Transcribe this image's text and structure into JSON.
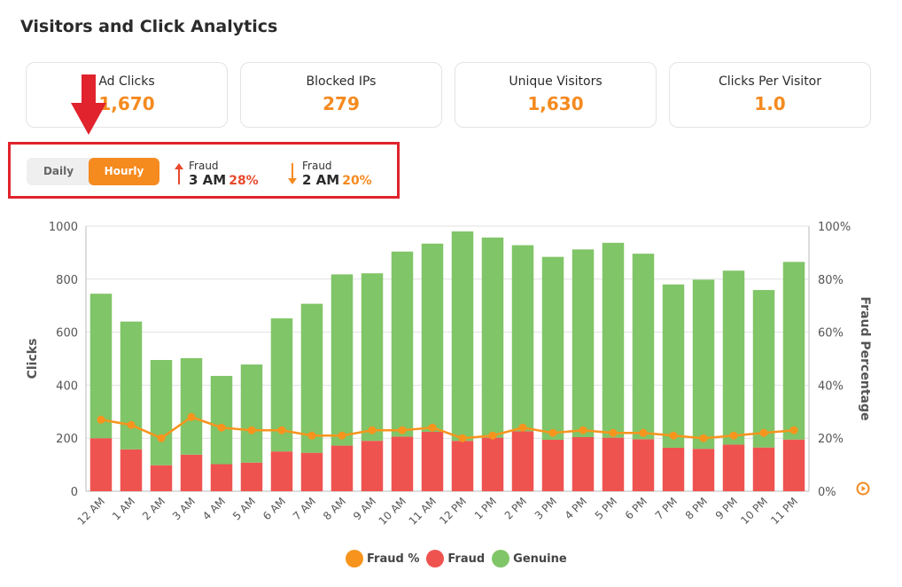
{
  "title": "Visitors and Click Analytics",
  "cards": [
    {
      "label": "Ad Clicks",
      "value": "1,670"
    },
    {
      "label": "Blocked IPs",
      "value": "279"
    },
    {
      "label": "Unique Visitors",
      "value": "1,630"
    },
    {
      "label": "Clicks Per Visitor",
      "value": "1.0"
    }
  ],
  "toggle": {
    "daily": "Daily",
    "hourly": "Hourly",
    "selected": "Hourly"
  },
  "fraud_high": {
    "label": "Fraud",
    "time": "3 AM",
    "pct": "28%"
  },
  "fraud_low": {
    "label": "Fraud",
    "time": "2 AM",
    "pct": "20%"
  },
  "colors": {
    "accent": "#f58a1f",
    "fraud": "#ef5350",
    "genuine": "#80c567",
    "line": "#f7941d",
    "highlight": "#e0232c"
  },
  "icons": {
    "down_arrow": "red-down-arrow-icon",
    "up": "arrow-up-icon",
    "down": "arrow-down-icon",
    "play": "play-circle-icon"
  },
  "chart_data": {
    "type": "bar",
    "stacked": true,
    "categories": [
      "12 AM",
      "1 AM",
      "2 AM",
      "3 AM",
      "4 AM",
      "5 AM",
      "6 AM",
      "7 AM",
      "8 AM",
      "9 AM",
      "10 AM",
      "11 AM",
      "12 PM",
      "1 PM",
      "2 PM",
      "3 PM",
      "4 PM",
      "5 PM",
      "6 PM",
      "7 PM",
      "8 PM",
      "9 PM",
      "10 PM",
      "11 PM"
    ],
    "series": [
      {
        "name": "Fraud",
        "type": "bar",
        "values": [
          200,
          158,
          98,
          138,
          102,
          108,
          150,
          145,
          172,
          190,
          206,
          224,
          190,
          202,
          226,
          194,
          204,
          202,
          196,
          164,
          160,
          176,
          165,
          195
        ]
      },
      {
        "name": "Genuine",
        "type": "bar",
        "values": [
          545,
          482,
          397,
          364,
          333,
          370,
          502,
          562,
          646,
          632,
          698,
          710,
          790,
          755,
          702,
          690,
          708,
          735,
          700,
          616,
          638,
          656,
          594,
          670
        ]
      },
      {
        "name": "Fraud %",
        "type": "line",
        "axis": "right",
        "values": [
          27,
          25,
          20,
          28,
          24,
          23,
          23,
          21,
          21,
          23,
          23,
          24,
          20,
          21,
          24,
          22,
          23,
          22,
          22,
          21,
          20,
          21,
          22,
          23
        ]
      }
    ],
    "ylabel": "Clicks",
    "ylim": [
      0,
      1000
    ],
    "yticks": [
      "0",
      "200",
      "400",
      "600",
      "800",
      "1000"
    ],
    "y2label": "Fraud Percentage",
    "y2lim": [
      0,
      100
    ],
    "y2ticks": [
      "0%",
      "20%",
      "40%",
      "60%",
      "80%",
      "100%"
    ],
    "legend": [
      "Fraud %",
      "Fraud",
      "Genuine"
    ],
    "legend_position": "bottom",
    "grid": true
  }
}
